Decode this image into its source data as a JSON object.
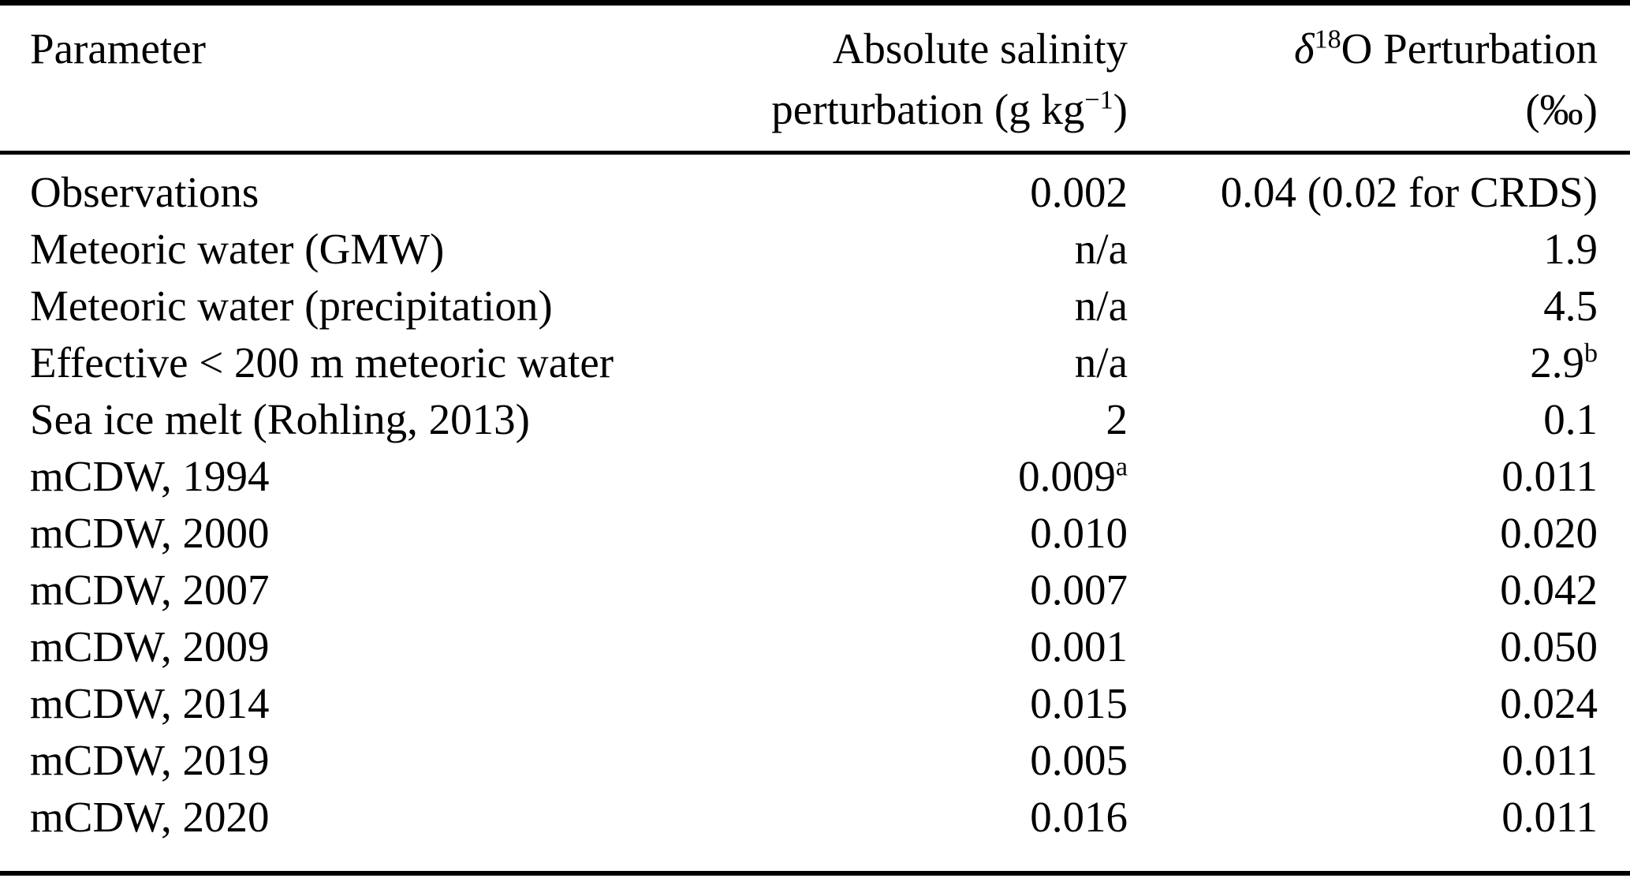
{
  "table": {
    "header": {
      "parameter": {
        "line1": [
          {
            "t": "Parameter"
          }
        ],
        "line2": []
      },
      "salinity": {
        "line1": [
          {
            "t": "Absolute salinity"
          }
        ],
        "line2": [
          {
            "t": "perturbation (g kg"
          },
          {
            "t": "−1",
            "sup": true
          },
          {
            "t": ")"
          }
        ]
      },
      "d18o": {
        "line1": [
          {
            "t": "δ",
            "i": true
          },
          {
            "t": "18",
            "sup": true
          },
          {
            "t": "O Perturbation"
          }
        ],
        "line2": [
          {
            "t": "(‰)"
          }
        ]
      }
    },
    "rows": [
      {
        "parameter": [
          {
            "t": "Observations"
          }
        ],
        "salinity": [
          {
            "t": "0.002"
          }
        ],
        "d18o": [
          {
            "t": "0.04 (0.02 for CRDS)"
          }
        ]
      },
      {
        "parameter": [
          {
            "t": "Meteoric water (GMW)"
          }
        ],
        "salinity": [
          {
            "t": "n/a"
          }
        ],
        "d18o": [
          {
            "t": "1.9"
          }
        ]
      },
      {
        "parameter": [
          {
            "t": "Meteoric water (precipitation)"
          }
        ],
        "salinity": [
          {
            "t": "n/a"
          }
        ],
        "d18o": [
          {
            "t": "4.5"
          }
        ]
      },
      {
        "parameter": [
          {
            "t": "Effective < 200 m meteoric water"
          }
        ],
        "salinity": [
          {
            "t": "n/a"
          }
        ],
        "d18o": [
          {
            "t": "2.9"
          },
          {
            "t": "b",
            "sup": true
          }
        ]
      },
      {
        "parameter": [
          {
            "t": "Sea ice melt (Rohling, 2013)"
          }
        ],
        "salinity": [
          {
            "t": "2"
          }
        ],
        "d18o": [
          {
            "t": "0.1"
          }
        ]
      },
      {
        "parameter": [
          {
            "t": "mCDW, 1994"
          }
        ],
        "salinity": [
          {
            "t": "0.009"
          },
          {
            "t": "a",
            "sup": true
          }
        ],
        "d18o": [
          {
            "t": "0.011"
          }
        ]
      },
      {
        "parameter": [
          {
            "t": "mCDW, 2000"
          }
        ],
        "salinity": [
          {
            "t": "0.010"
          }
        ],
        "d18o": [
          {
            "t": "0.020"
          }
        ]
      },
      {
        "parameter": [
          {
            "t": "mCDW, 2007"
          }
        ],
        "salinity": [
          {
            "t": "0.007"
          }
        ],
        "d18o": [
          {
            "t": "0.042"
          }
        ]
      },
      {
        "parameter": [
          {
            "t": "mCDW, 2009"
          }
        ],
        "salinity": [
          {
            "t": "0.001"
          }
        ],
        "d18o": [
          {
            "t": "0.050"
          }
        ]
      },
      {
        "parameter": [
          {
            "t": "mCDW, 2014"
          }
        ],
        "salinity": [
          {
            "t": "0.015"
          }
        ],
        "d18o": [
          {
            "t": "0.024"
          }
        ]
      },
      {
        "parameter": [
          {
            "t": "mCDW, 2019"
          }
        ],
        "salinity": [
          {
            "t": "0.005"
          }
        ],
        "d18o": [
          {
            "t": "0.011"
          }
        ]
      },
      {
        "parameter": [
          {
            "t": "mCDW, 2020"
          }
        ],
        "salinity": [
          {
            "t": "0.016"
          }
        ],
        "d18o": [
          {
            "t": "0.011"
          }
        ]
      }
    ],
    "colors": {
      "text": "#000000",
      "rule": "#000000",
      "background": "#ffffff"
    }
  }
}
